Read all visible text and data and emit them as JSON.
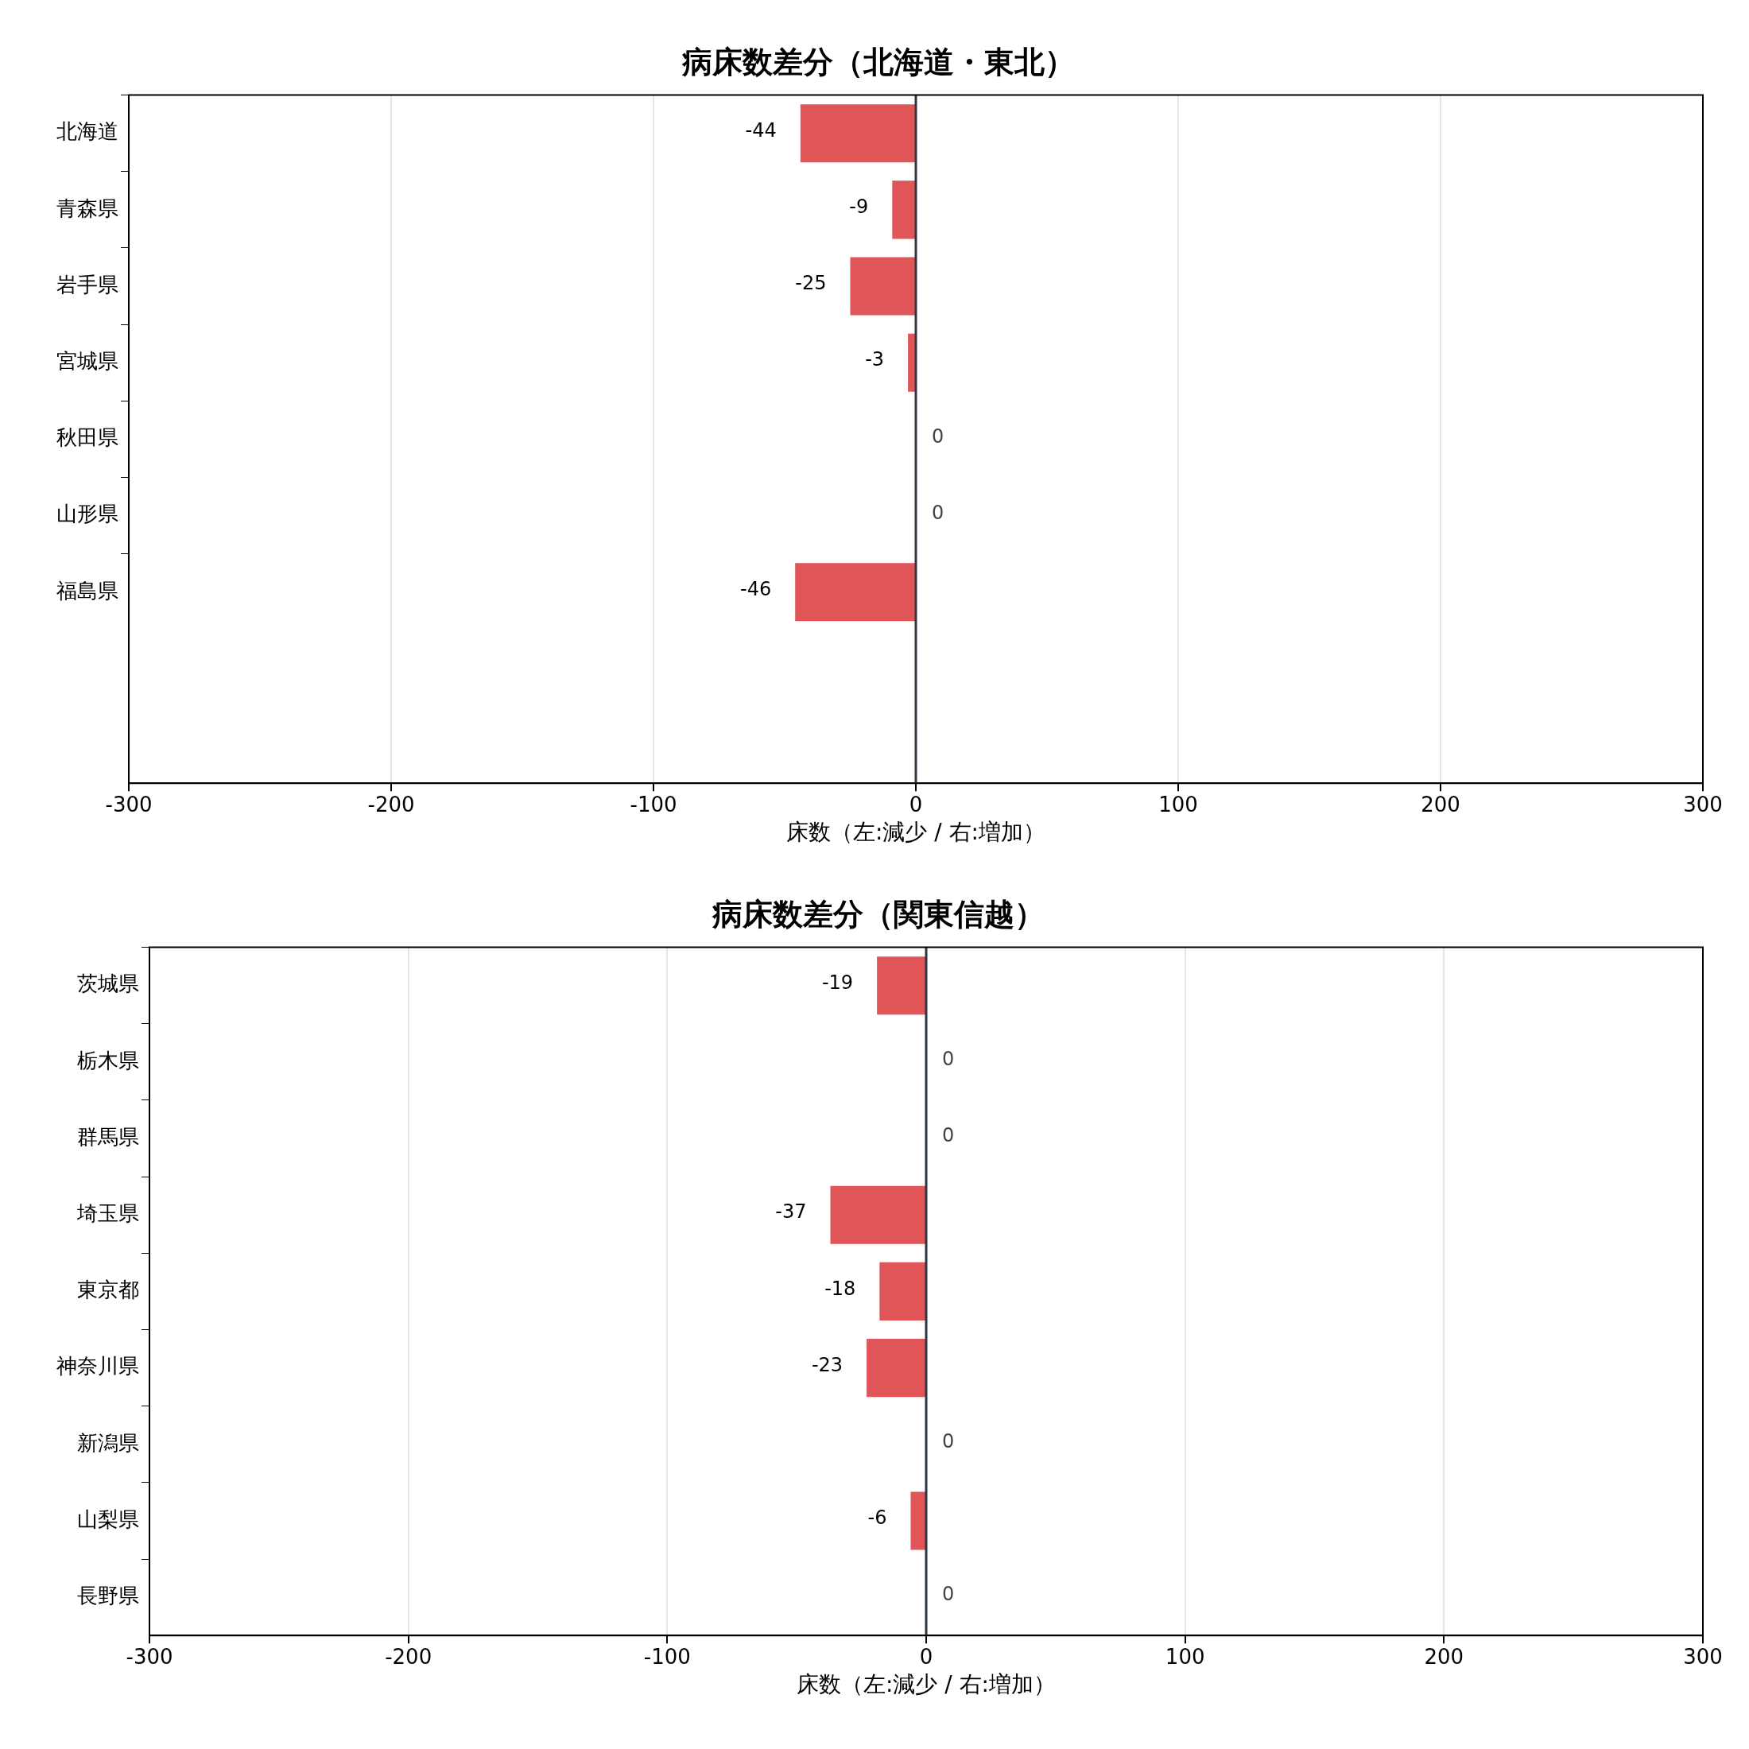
{
  "chart_data": [
    {
      "type": "bar",
      "orientation": "horizontal",
      "title": "病床数差分（北海道・東北）",
      "xlabel": "床数（左:減少 / 右:増加）",
      "categories": [
        "北海道",
        "青森県",
        "岩手県",
        "宮城県",
        "秋田県",
        "山形県",
        "福島県",
        null,
        null
      ],
      "values": [
        -44,
        -9,
        -25,
        -3,
        0,
        0,
        -46,
        null,
        null
      ],
      "color": "#e05558",
      "xlim": [
        -300,
        300
      ],
      "xticks": [
        -300,
        -200,
        -100,
        0,
        100,
        200,
        300
      ],
      "grid": "x",
      "legend": false,
      "data_labels": true,
      "ref_lines": [
        {
          "axis": "x",
          "value": 0,
          "color": "#2d3640"
        }
      ]
    },
    {
      "type": "bar",
      "orientation": "horizontal",
      "title": "病床数差分（関東信越）",
      "xlabel": "床数（左:減少 / 右:増加）",
      "categories": [
        "茨城県",
        "栃木県",
        "群馬県",
        "埼玉県",
        "東京都",
        "神奈川県",
        "新潟県",
        "山梨県",
        "長野県"
      ],
      "values": [
        -19,
        0,
        0,
        -37,
        -18,
        -23,
        0,
        -6,
        0
      ],
      "color": "#e05558",
      "xlim": [
        -300,
        300
      ],
      "xticks": [
        -300,
        -200,
        -100,
        0,
        100,
        200,
        300
      ],
      "grid": "x",
      "legend": false,
      "data_labels": true,
      "ref_lines": [
        {
          "axis": "x",
          "value": 0,
          "color": "#2d3640"
        }
      ]
    }
  ]
}
